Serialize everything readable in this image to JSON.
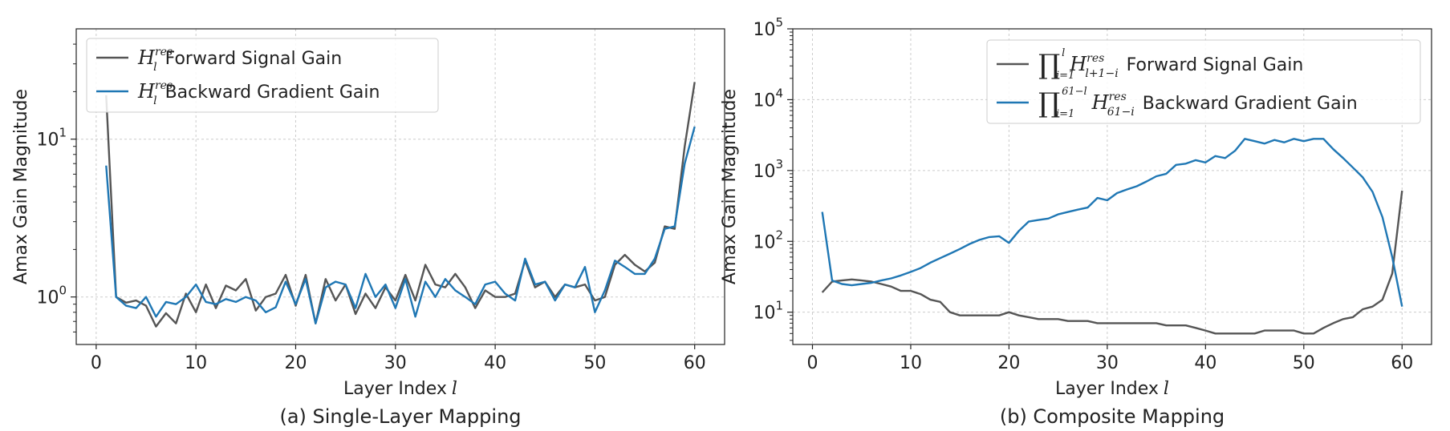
{
  "chart_data": [
    {
      "type": "line",
      "caption": "(a) Single-Layer Mapping",
      "xlabel": "Layer Index",
      "xlabel_var": "l",
      "ylabel": "Amax Gain Magnitude",
      "xlim": [
        -2,
        63
      ],
      "ylim": [
        0.5,
        50
      ],
      "yscale": "log",
      "xticks": [
        0,
        10,
        20,
        30,
        40,
        50,
        60
      ],
      "yticks": [
        {
          "value": 1,
          "base": "10",
          "exp": "0"
        },
        {
          "value": 10,
          "base": "10",
          "exp": "1"
        }
      ],
      "grid": true,
      "legend": "top-left",
      "x": [
        1,
        2,
        3,
        4,
        5,
        6,
        7,
        8,
        9,
        10,
        11,
        12,
        13,
        14,
        15,
        16,
        17,
        18,
        19,
        20,
        21,
        22,
        23,
        24,
        25,
        26,
        27,
        28,
        29,
        30,
        31,
        32,
        33,
        34,
        35,
        36,
        37,
        38,
        39,
        40,
        41,
        42,
        43,
        44,
        45,
        46,
        47,
        48,
        49,
        50,
        51,
        52,
        53,
        54,
        55,
        56,
        57,
        58,
        59,
        60
      ],
      "series": [
        {
          "name": "Forward Signal Gain",
          "math": {
            "sym": "H",
            "sub": "l",
            "sup": "res"
          },
          "color": "#555555",
          "values": [
            19,
            1.0,
            0.92,
            0.95,
            0.88,
            0.65,
            0.79,
            0.68,
            1.05,
            0.8,
            1.2,
            0.85,
            1.18,
            1.1,
            1.3,
            0.82,
            1.0,
            1.05,
            1.38,
            0.88,
            1.38,
            0.68,
            1.3,
            0.95,
            1.2,
            0.78,
            1.05,
            0.85,
            1.15,
            0.95,
            1.38,
            0.95,
            1.6,
            1.2,
            1.15,
            1.4,
            1.15,
            0.85,
            1.1,
            1.0,
            1.0,
            1.05,
            1.7,
            1.15,
            1.25,
            1.0,
            1.2,
            1.15,
            1.2,
            0.95,
            1.0,
            1.6,
            1.85,
            1.6,
            1.45,
            1.65,
            2.8,
            2.7,
            9.0,
            23
          ]
        },
        {
          "name": "Backward Gradient Gain",
          "math": {
            "sym": "H",
            "sub": "l",
            "sup": "res"
          },
          "color": "#1f77b4",
          "values": [
            6.8,
            1.0,
            0.88,
            0.85,
            1.0,
            0.75,
            0.93,
            0.9,
            1.0,
            1.2,
            0.93,
            0.9,
            0.97,
            0.93,
            1.0,
            0.95,
            0.8,
            0.86,
            1.25,
            0.9,
            1.3,
            0.68,
            1.15,
            1.25,
            1.2,
            0.85,
            1.4,
            1.0,
            1.2,
            0.85,
            1.3,
            0.75,
            1.25,
            1.0,
            1.3,
            1.1,
            1.0,
            0.9,
            1.2,
            1.25,
            1.05,
            0.95,
            1.75,
            1.2,
            1.25,
            0.95,
            1.2,
            1.15,
            1.55,
            0.8,
            1.1,
            1.7,
            1.55,
            1.4,
            1.4,
            1.75,
            2.7,
            2.8,
            7.0,
            12
          ]
        }
      ]
    },
    {
      "type": "line",
      "caption": "(b) Composite Mapping",
      "xlabel": "Layer Index",
      "xlabel_var": "l",
      "ylabel": "Amax Gain Magnitude",
      "xlim": [
        -2,
        63
      ],
      "ylim": [
        3.5,
        100000
      ],
      "yscale": "log",
      "xticks": [
        0,
        10,
        20,
        30,
        40,
        50,
        60
      ],
      "yticks": [
        {
          "value": 10,
          "base": "10",
          "exp": "1"
        },
        {
          "value": 100,
          "base": "10",
          "exp": "2"
        },
        {
          "value": 1000,
          "base": "10",
          "exp": "3"
        },
        {
          "value": 10000,
          "base": "10",
          "exp": "4"
        },
        {
          "value": 100000,
          "base": "10",
          "exp": "5"
        }
      ],
      "grid": true,
      "legend": "top-right",
      "x": [
        1,
        2,
        3,
        4,
        5,
        6,
        7,
        8,
        9,
        10,
        11,
        12,
        13,
        14,
        15,
        16,
        17,
        18,
        19,
        20,
        21,
        22,
        23,
        24,
        25,
        26,
        27,
        28,
        29,
        30,
        31,
        32,
        33,
        34,
        35,
        36,
        37,
        38,
        39,
        40,
        41,
        42,
        43,
        44,
        45,
        46,
        47,
        48,
        49,
        50,
        51,
        52,
        53,
        54,
        55,
        56,
        57,
        58,
        59,
        60
      ],
      "series": [
        {
          "name": "Forward Signal Gain",
          "math": {
            "prod": "∏",
            "lower": "i=1",
            "upper": "l",
            "sym": "H",
            "sub": "l+1−i",
            "sup": "res"
          },
          "color": "#555555",
          "values": [
            19,
            27,
            28,
            29,
            28,
            27,
            25,
            23,
            20,
            20,
            18,
            15,
            14,
            10,
            9,
            9,
            9,
            9,
            9,
            10,
            9,
            8.5,
            8,
            8,
            8,
            7.5,
            7.5,
            7.5,
            7,
            7,
            7,
            7,
            7,
            7,
            7,
            6.5,
            6.5,
            6.5,
            6,
            5.5,
            5,
            5,
            5,
            5,
            5,
            5.5,
            5.5,
            5.5,
            5.5,
            5,
            5,
            6,
            7,
            8,
            8.5,
            11,
            12,
            15,
            35,
            520
          ]
        },
        {
          "name": "Backward Gradient Gain",
          "math": {
            "prod": "∏",
            "lower": "i=1",
            "upper": "61−l",
            "sym": "H",
            "sub": "61−i",
            "sup": "res"
          },
          "color": "#1f77b4",
          "values": [
            260,
            28,
            25,
            24,
            25,
            26,
            28,
            30,
            33,
            37,
            42,
            50,
            58,
            67,
            78,
            92,
            105,
            115,
            118,
            95,
            140,
            190,
            200,
            210,
            240,
            260,
            280,
            300,
            410,
            380,
            480,
            540,
            600,
            700,
            830,
            900,
            1200,
            1250,
            1400,
            1300,
            1600,
            1500,
            1900,
            2800,
            2600,
            2400,
            2700,
            2500,
            2800,
            2600,
            2800,
            2800,
            2000,
            1500,
            1100,
            800,
            500,
            220,
            60,
            12
          ]
        }
      ]
    }
  ]
}
